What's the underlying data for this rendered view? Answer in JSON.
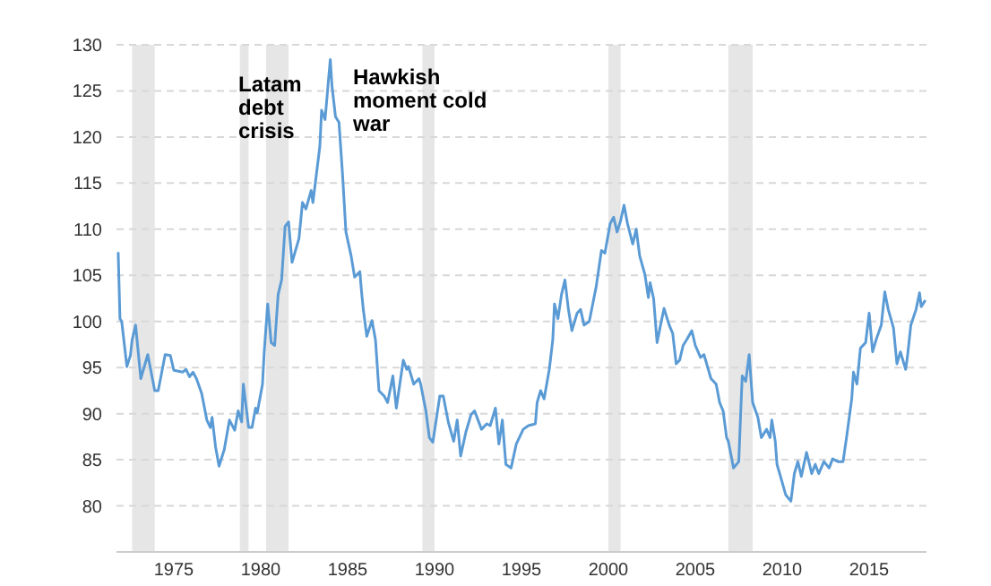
{
  "chart_data": {
    "type": "line",
    "xlim": [
      1971.7,
      2018.3
    ],
    "ylim": [
      75,
      130
    ],
    "xticks": [
      1975,
      1980,
      1985,
      1990,
      1995,
      2000,
      2005,
      2010,
      2015
    ],
    "yticks": [
      80,
      85,
      90,
      95,
      100,
      105,
      110,
      115,
      120,
      125,
      130
    ],
    "grid": "y",
    "marker": "none",
    "line_style": "solid",
    "bands": [
      {
        "axis": "x",
        "from": 1972.6,
        "to": 1973.9,
        "color": "#e6e6e6"
      },
      {
        "axis": "x",
        "from": 1978.8,
        "to": 1979.3,
        "color": "#e6e6e6"
      },
      {
        "axis": "x",
        "from": 1980.3,
        "to": 1981.6,
        "color": "#e6e6e6"
      },
      {
        "axis": "x",
        "from": 1989.3,
        "to": 1990.0,
        "color": "#e6e6e6"
      },
      {
        "axis": "x",
        "from": 2000.0,
        "to": 2000.7,
        "color": "#e6e6e6"
      },
      {
        "axis": "x",
        "from": 2006.9,
        "to": 2008.3,
        "color": "#e6e6e6"
      }
    ],
    "annotations": [
      "Latam debt crisis",
      "Hawkish moment cold war"
    ],
    "series": [
      {
        "color": "#5b9bd5",
        "x": [
          1971.8,
          1971.9,
          1972.0,
          1972.3,
          1972.5,
          1972.6,
          1972.8,
          1973.1,
          1973.5,
          1973.9,
          1974.1,
          1974.5,
          1974.8,
          1975.0,
          1975.5,
          1975.7,
          1975.9,
          1976.1,
          1976.3,
          1976.6,
          1976.9,
          1977.1,
          1977.2,
          1977.4,
          1977.6,
          1977.9,
          1978.2,
          1978.5,
          1978.7,
          1978.9,
          1979.0,
          1979.3,
          1979.5,
          1979.7,
          1979.8,
          1980.1,
          1980.2,
          1980.4,
          1980.6,
          1980.8,
          1981.0,
          1981.2,
          1981.4,
          1981.6,
          1981.8,
          1982.2,
          1982.4,
          1982.6,
          1982.9,
          1983.0,
          1983.4,
          1983.5,
          1983.7,
          1984.0,
          1984.1,
          1984.3,
          1984.5,
          1984.7,
          1984.9,
          1985.2,
          1985.4,
          1985.7,
          1985.8,
          1985.9,
          1986.1,
          1986.4,
          1986.6,
          1986.8,
          1987.1,
          1987.3,
          1987.6,
          1987.8,
          1987.9,
          1988.2,
          1988.4,
          1988.5,
          1988.8,
          1989.1,
          1989.2,
          1989.5,
          1989.7,
          1989.9,
          1990.3,
          1990.5,
          1990.8,
          1991.1,
          1991.3,
          1991.5,
          1991.8,
          1992.1,
          1992.3,
          1992.7,
          1993.0,
          1993.2,
          1993.5,
          1993.7,
          1993.9,
          1994.1,
          1994.4,
          1994.7,
          1995.1,
          1995.4,
          1995.8,
          1995.9,
          1996.1,
          1996.3,
          1996.6,
          1996.8,
          1996.9,
          1997.1,
          1997.3,
          1997.5,
          1997.7,
          1997.9,
          1998.2,
          1998.4,
          1998.6,
          1998.9,
          1999.1,
          1999.3,
          1999.6,
          1999.8,
          2000.1,
          2000.3,
          2000.5,
          2000.7,
          2000.9,
          2001.1,
          2001.4,
          2001.6,
          2001.8,
          2002.1,
          2002.3,
          2002.4,
          2002.6,
          2002.8,
          2003.0,
          2003.2,
          2003.5,
          2003.7,
          2003.9,
          2004.1,
          2004.3,
          2004.5,
          2004.8,
          2005.0,
          2005.3,
          2005.5,
          2005.7,
          2005.9,
          2006.2,
          2006.4,
          2006.6,
          2006.8,
          2006.9,
          2007.2,
          2007.5,
          2007.6,
          2007.7,
          2007.9,
          2008.1,
          2008.3,
          2008.6,
          2008.8,
          2009.1,
          2009.3,
          2009.4,
          2009.6,
          2009.7,
          2009.9,
          2010.2,
          2010.5,
          2010.7,
          2010.9,
          2011.1,
          2011.4,
          2011.7,
          2011.9,
          2012.1,
          2012.4,
          2012.7,
          2012.9,
          2013.2,
          2013.5,
          2013.7,
          2014.0,
          2014.1,
          2014.3,
          2014.5,
          2014.8,
          2015.0,
          2015.2,
          2015.4,
          2015.7,
          2015.9,
          2016.1,
          2016.4,
          2016.6,
          2016.8,
          2017.1,
          2017.2,
          2017.4,
          2017.7,
          2017.9,
          2018.0,
          2018.2
        ],
        "values": [
          107.4,
          100.3,
          100,
          95.1,
          96.3,
          98,
          99.6,
          93.8,
          96.4,
          92.5,
          92.5,
          96.4,
          96.3,
          94.7,
          94.5,
          94.8,
          94.0,
          94.5,
          93.8,
          92.2,
          89.3,
          88.5,
          89.6,
          86.4,
          84.3,
          86.1,
          89.3,
          88.2,
          90.3,
          89.1,
          93.2,
          88.5,
          88.5,
          90.6,
          90.1,
          93.2,
          96.7,
          101.9,
          97.7,
          97.4,
          102.9,
          104.5,
          110.3,
          110.8,
          106.4,
          109.0,
          112.9,
          112.2,
          114.2,
          112.9,
          119.0,
          122.9,
          121.9,
          128.4,
          125.5,
          122.2,
          121.6,
          116.1,
          109.7,
          107.1,
          104.8,
          105.4,
          103.2,
          101.3,
          98.4,
          100.1,
          98,
          92.5,
          91.9,
          91.2,
          94.1,
          90.6,
          91.9,
          95.8,
          94.8,
          95.1,
          93.2,
          93.8,
          93.2,
          90.3,
          87.4,
          86.9,
          91.9,
          91.9,
          89.0,
          87.0,
          89.3,
          85.4,
          88.0,
          89.9,
          90.3,
          88.3,
          88.9,
          88.7,
          90.6,
          86.7,
          89.3,
          84.5,
          84.1,
          86.7,
          88.3,
          88.7,
          88.9,
          91.2,
          92.5,
          91.6,
          94.8,
          98.0,
          101.9,
          100.3,
          102.9,
          104.5,
          101.3,
          99.0,
          100.9,
          101.3,
          99.6,
          100,
          101.9,
          103.8,
          107.7,
          107.4,
          110.6,
          111.3,
          109.7,
          110.9,
          112.6,
          110.6,
          108.4,
          110.0,
          107.1,
          105.1,
          102.6,
          104.2,
          102.5,
          97.7,
          99.6,
          101.4,
          99.6,
          98.7,
          95.4,
          95.8,
          97.4,
          98.0,
          99.0,
          97.4,
          96.1,
          96.4,
          95.1,
          93.8,
          93.2,
          91.2,
          90.3,
          87.4,
          87.0,
          84.1,
          84.8,
          89.6,
          94.1,
          93.5,
          96.4,
          91.2,
          89.6,
          87.4,
          88.3,
          87.4,
          89.3,
          87.0,
          84.5,
          83.2,
          81.2,
          80.5,
          83.5,
          84.8,
          83.2,
          85.8,
          83.5,
          84.5,
          83.5,
          84.8,
          84.1,
          85.1,
          84.8,
          84.8,
          87.4,
          91.6,
          94.5,
          93.2,
          97.1,
          97.7,
          100.9,
          96.7,
          98.0,
          99.6,
          103.2,
          101.3,
          99.3,
          95.4,
          96.7,
          94.8,
          96.1,
          99.6,
          101.3,
          103.1,
          101.6,
          102.2
        ]
      }
    ]
  }
}
